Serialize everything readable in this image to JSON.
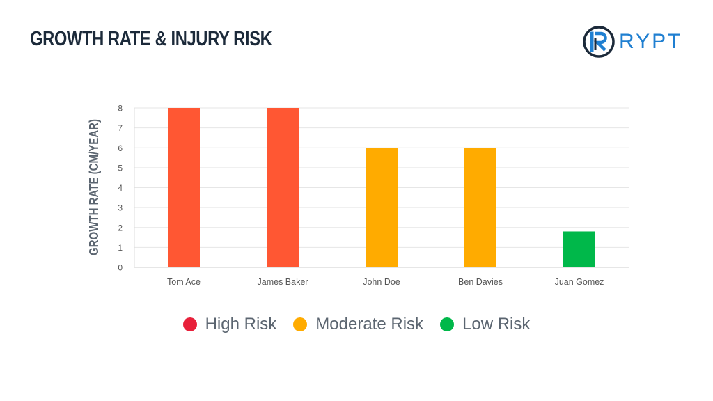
{
  "title": "GROWTH RATE & INJURY RISK",
  "logo": {
    "text": "RYPT",
    "color": "#1f7fd1",
    "dark": "#1c2a3a"
  },
  "chart_data": {
    "type": "bar",
    "categories": [
      "Tom Ace",
      "James Baker",
      "John Doe",
      "Ben Davies",
      "Juan Gomez"
    ],
    "values": [
      8,
      8,
      6,
      6,
      1.8
    ],
    "colors": [
      "#ff5733",
      "#ff5733",
      "#ffab00",
      "#ffab00",
      "#00b84a"
    ],
    "ylabel": "GROWTH RATE (CM/YEAR)",
    "xlabel": "",
    "ylim": [
      0,
      8
    ],
    "yticks": [
      0,
      1,
      2,
      3,
      4,
      5,
      6,
      7,
      8
    ],
    "grid": true,
    "legend_position": "bottom",
    "legend": [
      {
        "label": "High Risk",
        "color": "#e8203a"
      },
      {
        "label": "Moderate Risk",
        "color": "#ffab00"
      },
      {
        "label": "Low Risk",
        "color": "#00b84a"
      }
    ]
  }
}
